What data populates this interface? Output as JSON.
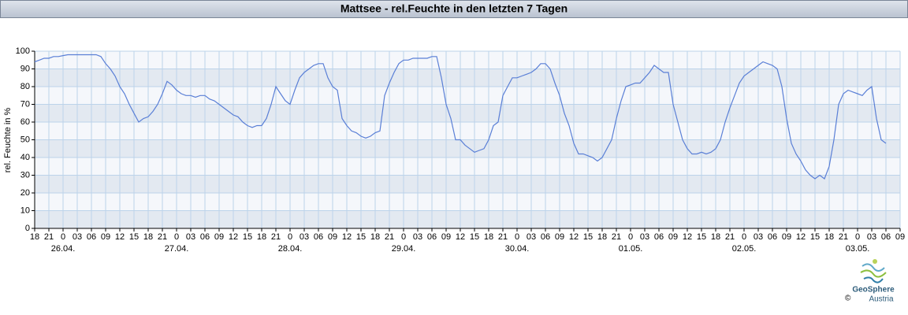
{
  "chart_data": {
    "type": "line",
    "title": "Mattsee - rel.Feuchte in den letzten 7 Tagen",
    "y_label": "rel. Feuchte in %",
    "categories": [
      "18",
      null,
      null,
      "21",
      null,
      null,
      "0",
      null,
      null,
      "03",
      null,
      null,
      "06",
      null,
      null,
      "09",
      null,
      null,
      "12",
      null,
      null,
      "15",
      null,
      null,
      "18",
      null,
      null,
      "21",
      null,
      null,
      "0",
      null,
      null,
      "03",
      null,
      null,
      "06",
      null,
      null,
      "09",
      null,
      null,
      "12",
      null,
      null,
      "15",
      null,
      null,
      "18",
      null,
      null,
      "21",
      null,
      null,
      "0",
      null,
      null,
      "03",
      null,
      null,
      "06",
      null,
      null,
      "09",
      null,
      null,
      "12",
      null,
      null,
      "15",
      null,
      null,
      "18",
      null,
      null,
      "21",
      null,
      null,
      "0",
      null,
      null,
      "03",
      null,
      null,
      "06",
      null,
      null,
      "09",
      null,
      null,
      "12",
      null,
      null,
      "15",
      null,
      null,
      "18",
      null,
      null,
      "21",
      null,
      null,
      "0",
      null,
      null,
      "03",
      null,
      null,
      "06",
      null,
      null,
      "09",
      null,
      null,
      "12",
      null,
      null,
      "15",
      null,
      null,
      "18",
      null,
      null,
      "21",
      null,
      null,
      "0",
      null,
      null,
      "03",
      null,
      null,
      "06",
      null,
      null,
      "09",
      null,
      null,
      "12",
      null,
      null,
      "15",
      null,
      null,
      "18",
      null,
      null,
      "21",
      null,
      null,
      "0",
      null,
      null,
      "03",
      null,
      null,
      "06",
      null,
      null,
      "09",
      null,
      null,
      "12",
      null,
      null,
      "15",
      null,
      null,
      "18",
      null,
      null,
      "21",
      null,
      null,
      "0",
      null,
      null,
      "03",
      null,
      null,
      "06",
      null,
      null,
      "09"
    ],
    "dates": [
      null,
      null,
      null,
      null,
      null,
      null,
      "26.04.",
      null,
      null,
      null,
      null,
      null,
      null,
      null,
      null,
      null,
      null,
      null,
      null,
      null,
      null,
      null,
      null,
      null,
      null,
      null,
      null,
      null,
      null,
      null,
      "27.04.",
      null,
      null,
      null,
      null,
      null,
      null,
      null,
      null,
      null,
      null,
      null,
      null,
      null,
      null,
      null,
      null,
      null,
      null,
      null,
      null,
      null,
      null,
      null,
      "28.04.",
      null,
      null,
      null,
      null,
      null,
      null,
      null,
      null,
      null,
      null,
      null,
      null,
      null,
      null,
      null,
      null,
      null,
      null,
      null,
      null,
      null,
      null,
      null,
      "29.04.",
      null,
      null,
      null,
      null,
      null,
      null,
      null,
      null,
      null,
      null,
      null,
      null,
      null,
      null,
      null,
      null,
      null,
      null,
      null,
      null,
      null,
      null,
      null,
      "30.04.",
      null,
      null,
      null,
      null,
      null,
      null,
      null,
      null,
      null,
      null,
      null,
      null,
      null,
      null,
      null,
      null,
      null,
      null,
      null,
      null,
      null,
      null,
      null,
      "01.05.",
      null,
      null,
      null,
      null,
      null,
      null,
      null,
      null,
      null,
      null,
      null,
      null,
      null,
      null,
      null,
      null,
      null,
      null,
      null,
      null,
      null,
      null,
      null,
      "02.05.",
      null,
      null,
      null,
      null,
      null,
      null,
      null,
      null,
      null,
      null,
      null,
      null,
      null,
      null,
      null,
      null,
      null,
      null,
      null,
      null,
      null,
      null,
      null,
      "03.05.",
      null,
      null,
      null,
      null,
      null,
      null,
      null,
      null,
      null
    ],
    "series": [
      {
        "color": "#5a7fd6",
        "values": [
          94,
          95,
          96,
          96,
          97,
          97,
          97.5,
          98,
          98,
          98,
          98,
          98,
          98,
          98,
          97,
          93,
          90,
          86,
          80,
          76,
          70,
          65,
          60,
          62,
          63,
          66,
          70,
          76,
          83,
          81,
          78,
          76,
          75,
          75,
          74,
          75,
          75,
          73,
          72,
          70,
          68,
          66,
          64,
          63,
          60,
          58,
          57,
          58,
          58,
          62,
          70,
          80,
          76,
          72,
          70,
          78,
          85,
          88,
          90,
          92,
          93,
          93,
          85,
          80,
          78,
          62,
          58,
          55,
          54,
          52,
          51,
          52,
          54,
          55,
          75,
          82,
          88,
          93,
          95,
          95,
          96,
          96,
          96,
          96,
          97,
          97,
          85,
          70,
          62,
          50,
          50,
          47,
          45,
          43,
          44,
          45,
          50,
          58,
          60,
          75,
          80,
          85,
          85,
          86,
          87,
          88,
          90,
          93,
          93,
          90,
          82,
          75,
          65,
          58,
          48,
          42,
          42,
          41,
          40,
          38,
          40,
          45,
          50,
          62,
          72,
          80,
          81,
          82,
          82,
          85,
          88,
          92,
          90,
          88,
          88,
          70,
          60,
          50,
          45,
          42,
          42,
          43,
          42,
          43,
          45,
          50,
          60,
          68,
          75,
          82,
          86,
          88,
          90,
          92,
          94,
          93,
          92,
          90,
          80,
          62,
          48,
          42,
          38,
          33,
          30,
          28,
          30,
          28,
          35,
          50,
          70,
          76,
          78,
          77,
          76,
          75,
          78,
          80,
          62,
          50,
          48,
          null,
          null,
          null
        ]
      }
    ],
    "ylim": [
      0,
      100
    ],
    "yticks": [
      0,
      10,
      20,
      30,
      40,
      50,
      60,
      70,
      80,
      90,
      100
    ],
    "grid": true,
    "bands": true,
    "logo": {
      "name": "GeoSphere",
      "sub": "Austria",
      "copyright": "©"
    }
  }
}
